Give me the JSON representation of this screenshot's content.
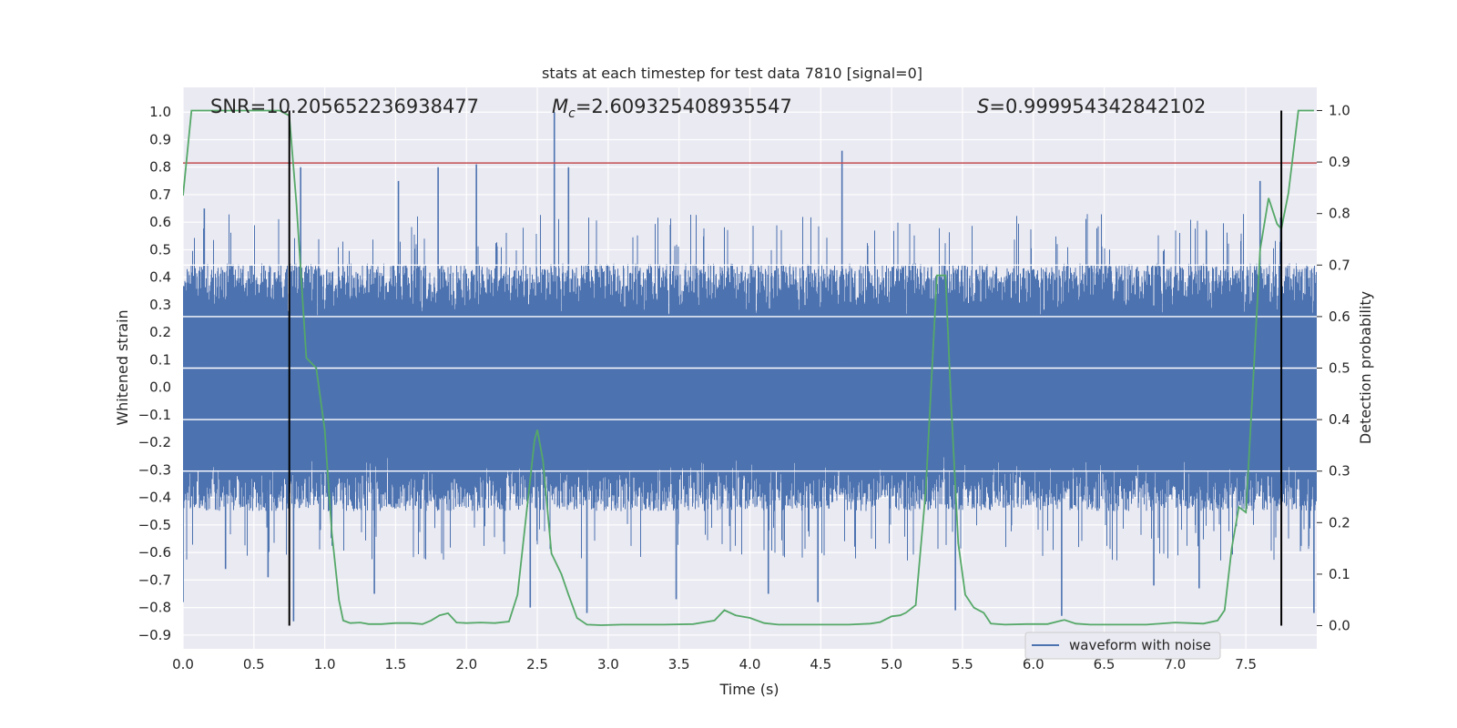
{
  "chart_data": {
    "type": "line",
    "title": "stats at each timestep for test data 7810 [signal=0]",
    "xlabel": "Time (s)",
    "ylabel": "Whitened strain",
    "y2label": "Detection probability",
    "xlim": [
      0.0,
      8.0
    ],
    "ylim": [
      -0.95,
      1.09
    ],
    "y2lim": [
      -0.045,
      1.045
    ],
    "xticks": [
      "0.0",
      "0.5",
      "1.0",
      "1.5",
      "2.0",
      "2.5",
      "3.0",
      "3.5",
      "4.0",
      "4.5",
      "5.0",
      "5.5",
      "6.0",
      "6.5",
      "7.0",
      "7.5"
    ],
    "yticks": [
      "1.0",
      "0.9",
      "0.8",
      "0.7",
      "0.6",
      "0.5",
      "0.4",
      "0.3",
      "0.2",
      "0.1",
      "0.0",
      "-0.1",
      "-0.2",
      "-0.3",
      "-0.4",
      "-0.5",
      "-0.6",
      "-0.7",
      "-0.8",
      "-0.9"
    ],
    "y2ticks": [
      "1.0",
      "0.9",
      "0.8",
      "0.7",
      "0.6",
      "0.5",
      "0.4",
      "0.3",
      "0.2",
      "0.1",
      "0.0"
    ],
    "grid": true,
    "legend_placement": "lower-right",
    "annotations": {
      "snr": "SNR=10.205652236938477",
      "mc_symbol": "M",
      "mc_sub": "c",
      "mc_value": "=2.609325408935547",
      "s_symbol": "S",
      "s_value": "=0.999954342842102"
    },
    "series": [
      {
        "name": "waveform with noise",
        "axis": "left",
        "color": "#4c72b0",
        "kind": "noise",
        "envelope_pos": 0.45,
        "envelope_neg": -0.45,
        "peaks": [
          {
            "x": 0.0,
            "y": -0.78
          },
          {
            "x": 0.03,
            "y": 0.38
          },
          {
            "x": 0.15,
            "y": 0.65
          },
          {
            "x": 0.3,
            "y": -0.66
          },
          {
            "x": 0.6,
            "y": -0.69
          },
          {
            "x": 0.75,
            "y": 0.61
          },
          {
            "x": 0.78,
            "y": -0.85
          },
          {
            "x": 0.83,
            "y": 0.8
          },
          {
            "x": 1.35,
            "y": -0.75
          },
          {
            "x": 1.52,
            "y": 0.75
          },
          {
            "x": 1.8,
            "y": 0.8
          },
          {
            "x": 2.07,
            "y": 0.81
          },
          {
            "x": 2.45,
            "y": -0.8
          },
          {
            "x": 2.62,
            "y": 1.0
          },
          {
            "x": 2.72,
            "y": 0.8
          },
          {
            "x": 2.85,
            "y": -0.82
          },
          {
            "x": 3.48,
            "y": -0.77
          },
          {
            "x": 4.13,
            "y": -0.75
          },
          {
            "x": 4.65,
            "y": 0.86
          },
          {
            "x": 4.48,
            "y": -0.78
          },
          {
            "x": 5.45,
            "y": -0.81
          },
          {
            "x": 6.2,
            "y": -0.83
          },
          {
            "x": 6.85,
            "y": -0.72
          },
          {
            "x": 7.17,
            "y": -0.73
          },
          {
            "x": 7.6,
            "y": 0.75
          },
          {
            "x": 7.98,
            "y": -0.82
          }
        ]
      },
      {
        "name": "detection probability",
        "axis": "right",
        "color": "#55a868",
        "x": [
          0.0,
          0.06,
          0.12,
          0.2,
          0.3,
          0.4,
          0.5,
          0.6,
          0.68,
          0.75,
          0.8,
          0.87,
          0.94,
          0.96,
          1.0,
          1.05,
          1.1,
          1.13,
          1.18,
          1.25,
          1.31,
          1.4,
          1.5,
          1.6,
          1.69,
          1.75,
          1.81,
          1.87,
          1.93,
          2.0,
          2.1,
          2.2,
          2.3,
          2.36,
          2.42,
          2.48,
          2.5,
          2.54,
          2.6,
          2.67,
          2.72,
          2.78,
          2.85,
          2.95,
          3.1,
          3.2,
          3.4,
          3.6,
          3.75,
          3.82,
          3.9,
          4.0,
          4.1,
          4.2,
          4.3,
          4.5,
          4.7,
          4.85,
          4.92,
          5.0,
          5.06,
          5.1,
          5.17,
          5.24,
          5.32,
          5.38,
          5.42,
          5.47,
          5.52,
          5.58,
          5.65,
          5.7,
          5.8,
          5.95,
          6.1,
          6.2,
          6.22,
          6.3,
          6.4,
          6.6,
          6.8,
          7.0,
          7.1,
          7.2,
          7.3,
          7.35,
          7.4,
          7.45,
          7.5,
          7.55,
          7.6,
          7.66,
          7.72,
          7.75,
          7.8,
          7.87,
          7.93,
          7.98
        ],
        "y": [
          0.835,
          1.0,
          1.0,
          1.0,
          1.0,
          1.0,
          1.0,
          1.0,
          1.0,
          0.99,
          0.82,
          0.52,
          0.5,
          0.46,
          0.38,
          0.18,
          0.05,
          0.01,
          0.005,
          0.006,
          0.003,
          0.003,
          0.005,
          0.005,
          0.003,
          0.01,
          0.02,
          0.024,
          0.006,
          0.005,
          0.006,
          0.005,
          0.008,
          0.06,
          0.21,
          0.36,
          0.38,
          0.32,
          0.14,
          0.1,
          0.06,
          0.015,
          0.002,
          0.001,
          0.002,
          0.002,
          0.002,
          0.003,
          0.01,
          0.03,
          0.02,
          0.015,
          0.005,
          0.002,
          0.002,
          0.002,
          0.002,
          0.004,
          0.007,
          0.018,
          0.02,
          0.025,
          0.04,
          0.26,
          0.68,
          0.68,
          0.43,
          0.16,
          0.06,
          0.035,
          0.025,
          0.004,
          0.002,
          0.003,
          0.003,
          0.01,
          0.011,
          0.004,
          0.002,
          0.002,
          0.002,
          0.006,
          0.005,
          0.004,
          0.01,
          0.03,
          0.15,
          0.23,
          0.22,
          0.47,
          0.73,
          0.83,
          0.78,
          0.77,
          0.84,
          1.0,
          1.0,
          1.0
        ]
      }
    ],
    "threshold_line": {
      "axis": "left",
      "y": 0.815,
      "color": "#c44e52"
    },
    "vertical_lines": [
      {
        "x": 0.75,
        "y_from": 0.0,
        "y_to": 1.0,
        "axis": "right",
        "color": "#000000"
      },
      {
        "x": 7.75,
        "y_from": 0.0,
        "y_to": 1.0,
        "axis": "right",
        "color": "#000000"
      }
    ],
    "right_axis_gridlines": [
      0.3,
      0.4,
      0.5,
      0.6,
      0.7
    ]
  }
}
